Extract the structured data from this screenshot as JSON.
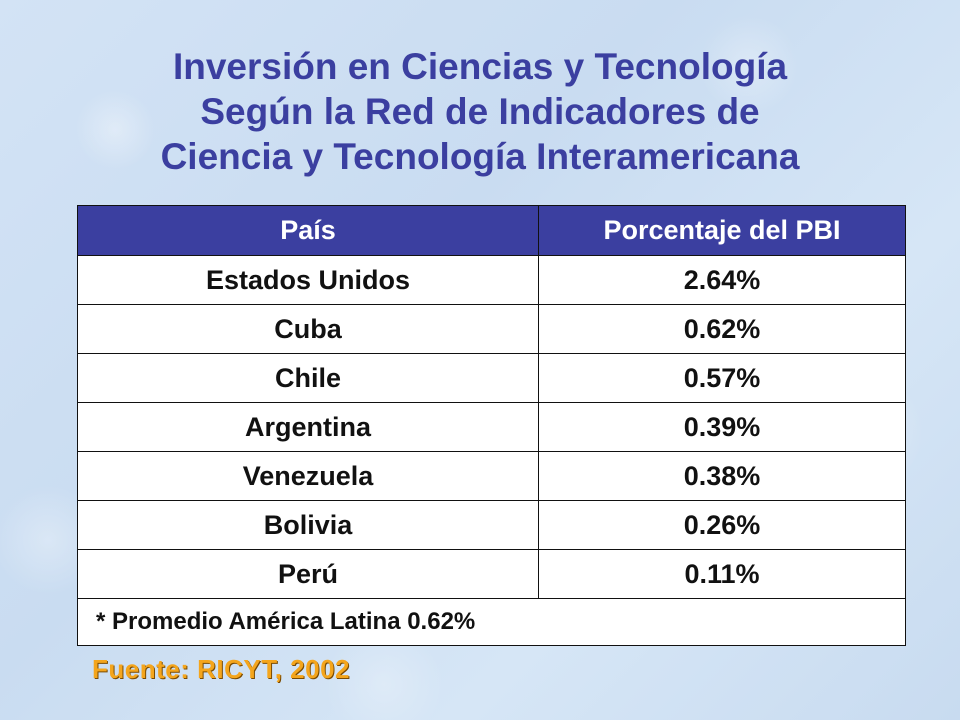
{
  "title": {
    "line1": "Inversión en Ciencias y Tecnología",
    "line2": "Según la Red de Indicadores de",
    "line3": "Ciencia y Tecnología Interamericana"
  },
  "table": {
    "headers": [
      "País",
      "Porcentaje del PBI"
    ],
    "rows": [
      [
        "Estados Unidos",
        "2.64%"
      ],
      [
        "Cuba",
        "0.62%"
      ],
      [
        "Chile",
        "0.57%"
      ],
      [
        "Argentina",
        "0.39%"
      ],
      [
        "Venezuela",
        "0.38%"
      ],
      [
        "Bolivia",
        "0.26%"
      ],
      [
        "Perú",
        "0.11%"
      ]
    ],
    "note": "* Promedio América Latina 0.62%"
  },
  "source": "Fuente: RICYT, 2002",
  "colors": {
    "title": "#3b3fa0",
    "header_bg": "#3b3fa0",
    "source": "#f4a51c",
    "background": "#cfe0f3"
  }
}
